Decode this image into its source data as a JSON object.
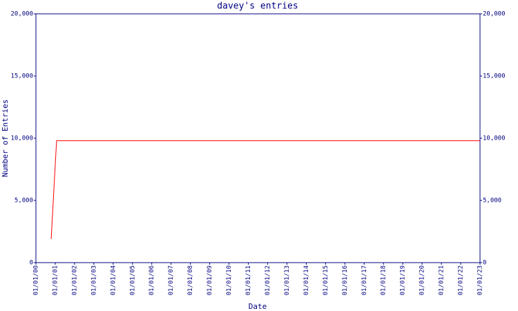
{
  "chart_data": {
    "type": "line",
    "title": "davey's entries",
    "x_label": "Date",
    "y_label": "Number of Entries",
    "x": [
      2000.79,
      2001.07,
      2023
    ],
    "series": [
      {
        "name": "entries",
        "color": "#ff0000",
        "values": [
          1900,
          9800,
          9800
        ]
      }
    ],
    "xlim": [
      2000,
      2023
    ],
    "xticks": [
      {
        "value": 2000,
        "label": "01/01/00"
      },
      {
        "value": 2001,
        "label": "01/01/01"
      },
      {
        "value": 2002,
        "label": "01/01/02"
      },
      {
        "value": 2003,
        "label": "01/01/03"
      },
      {
        "value": 2004,
        "label": "01/01/04"
      },
      {
        "value": 2005,
        "label": "01/01/05"
      },
      {
        "value": 2006,
        "label": "01/01/06"
      },
      {
        "value": 2007,
        "label": "01/01/07"
      },
      {
        "value": 2008,
        "label": "01/01/08"
      },
      {
        "value": 2009,
        "label": "01/01/09"
      },
      {
        "value": 2010,
        "label": "01/01/10"
      },
      {
        "value": 2011,
        "label": "01/01/11"
      },
      {
        "value": 2012,
        "label": "01/01/12"
      },
      {
        "value": 2013,
        "label": "01/01/13"
      },
      {
        "value": 2014,
        "label": "01/01/14"
      },
      {
        "value": 2015,
        "label": "01/01/15"
      },
      {
        "value": 2016,
        "label": "01/01/16"
      },
      {
        "value": 2017,
        "label": "01/01/17"
      },
      {
        "value": 2018,
        "label": "01/01/18"
      },
      {
        "value": 2019,
        "label": "01/01/19"
      },
      {
        "value": 2020,
        "label": "01/01/20"
      },
      {
        "value": 2021,
        "label": "01/01/21"
      },
      {
        "value": 2022,
        "label": "01/01/22"
      },
      {
        "value": 2023,
        "label": "01/01/23"
      }
    ],
    "ylim": [
      0,
      20000
    ],
    "yticks": [
      0,
      {
        "value": 5000,
        "label": "5,000"
      },
      {
        "value": 10000,
        "label": "10,000"
      },
      {
        "value": 15000,
        "label": "15,000"
      },
      {
        "value": 20000,
        "label": "20,000"
      }
    ],
    "axis_color": "#000080"
  }
}
